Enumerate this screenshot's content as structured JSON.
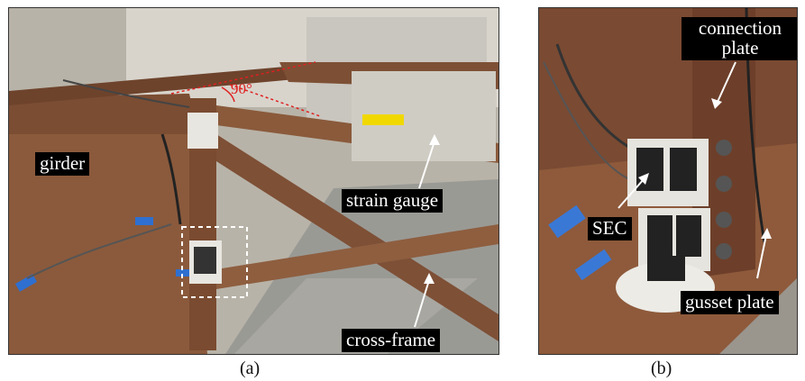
{
  "panel_a": {
    "caption": "(a)",
    "labels": {
      "girder": "girder",
      "angle": "90°",
      "strain_gauge": "strain gauge",
      "cross_frame": "cross-frame"
    }
  },
  "panel_b": {
    "caption": "(b)",
    "labels": {
      "connection_plate": "connection plate",
      "sec": "SEC",
      "gusset_plate": "gusset plate"
    }
  },
  "colors": {
    "steel_rust": "#8b5a3c",
    "floor": "#9a9a95",
    "label_background": "#000000",
    "label_text": "#ffffff",
    "angle_line": "#e02020",
    "highlight_box": "#ffffff"
  }
}
